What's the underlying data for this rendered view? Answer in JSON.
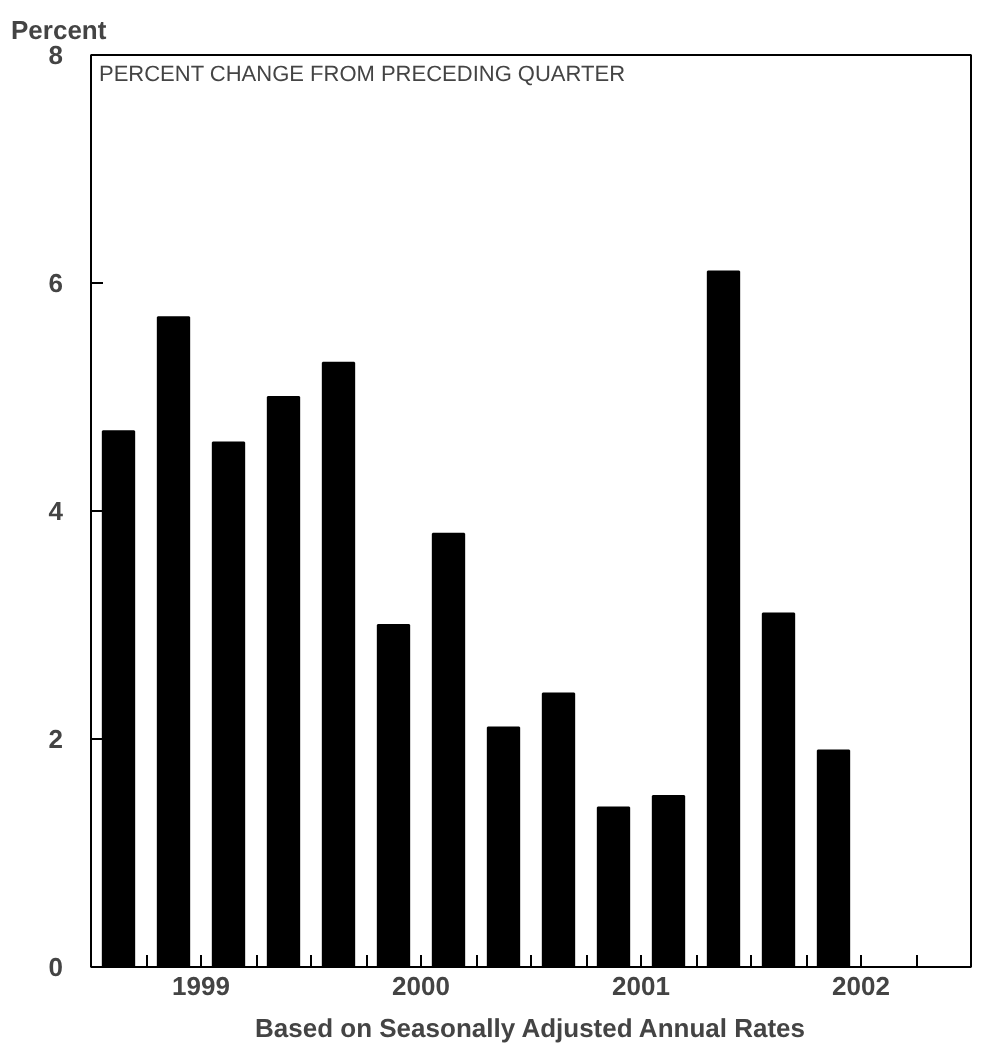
{
  "chart_data": {
    "type": "bar",
    "ylabel": "Percent",
    "xlabel": "Based on Seasonally Adjusted Annual Rates",
    "annotations": [
      "PERCENT CHANGE FROM PRECEDING QUARTER"
    ],
    "x": [
      1999.125,
      1999.375,
      1999.625,
      1999.875,
      2000.125,
      2000.375,
      2000.625,
      2000.875,
      2001.125,
      2001.375,
      2001.625,
      2001.875,
      2002.125,
      2002.375
    ],
    "values": [
      4.7,
      5.7,
      4.6,
      5.0,
      5.3,
      3.0,
      3.8,
      2.1,
      2.4,
      1.4,
      1.5,
      6.1,
      3.1,
      1.9
    ],
    "color": "#000000",
    "xlim": [
      1999,
      2003
    ],
    "xticks": [
      {
        "value": 1999.25,
        "label": null
      },
      {
        "value": 1999.5,
        "label": "1999"
      },
      {
        "value": 1999.75,
        "label": null
      },
      {
        "value": 2000,
        "label": null
      },
      {
        "value": 2000.25,
        "label": null
      },
      {
        "value": 2000.5,
        "label": "2000"
      },
      {
        "value": 2000.75,
        "label": null
      },
      {
        "value": 2001,
        "label": null
      },
      {
        "value": 2001.25,
        "label": null
      },
      {
        "value": 2001.5,
        "label": "2001"
      },
      {
        "value": 2001.75,
        "label": null
      },
      {
        "value": 2002,
        "label": null
      },
      {
        "value": 2002.25,
        "label": null
      },
      {
        "value": 2002.5,
        "label": "2002"
      },
      {
        "value": 2002.75,
        "label": null
      }
    ],
    "ylim": [
      0,
      8
    ],
    "yticks": [
      0,
      2,
      4,
      6,
      8
    ],
    "grid": false
  }
}
